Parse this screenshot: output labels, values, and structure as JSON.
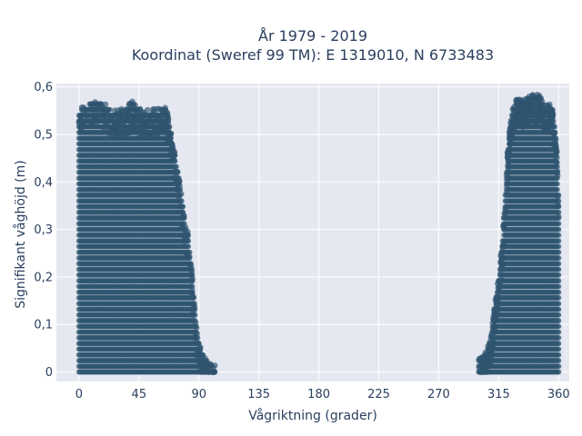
{
  "chart_data": {
    "type": "scatter",
    "title_line1": "År 1979 - 2019",
    "title_line2": "Koordinat (Sweref 99 TM): E 1319010, N 6733483",
    "xlabel": "Vågriktning (grader)",
    "ylabel": "Signifikant våghöjd (m)",
    "xlim": [
      -17,
      368
    ],
    "ylim": [
      -0.02,
      0.607
    ],
    "x_ticks": [
      0,
      45,
      90,
      135,
      180,
      225,
      270,
      315,
      360
    ],
    "x_tick_labels": [
      "0",
      "45",
      "90",
      "135",
      "180",
      "225",
      "270",
      "315",
      "360"
    ],
    "y_ticks": [
      0,
      0.1,
      0.2,
      0.3,
      0.4,
      0.5,
      0.6
    ],
    "y_tick_labels": [
      "0",
      "0,1",
      "0,2",
      "0,3",
      "0,4",
      "0,5",
      "0,6"
    ],
    "grid": true,
    "marker_color": "#2f5570",
    "plot_background": "#e5e8f0",
    "series": [
      {
        "envelope_x": [
          0,
          5,
          10,
          15,
          20,
          25,
          30,
          35,
          40,
          45,
          50,
          55,
          60,
          65,
          70,
          75,
          78,
          80,
          82,
          85,
          88,
          90,
          92,
          95,
          98,
          100,
          102
        ],
        "envelope_y": [
          0.55,
          0.56,
          0.57,
          0.57,
          0.56,
          0.55,
          0.55,
          0.55,
          0.57,
          0.55,
          0.55,
          0.55,
          0.55,
          0.56,
          0.49,
          0.41,
          0.35,
          0.31,
          0.29,
          0.2,
          0.1,
          0.06,
          0.04,
          0.03,
          0.02,
          0.01,
          0.01
        ]
      },
      {
        "envelope_x": [
          300,
          303,
          305,
          308,
          310,
          312,
          315,
          318,
          320,
          322,
          325,
          328,
          330,
          335,
          340,
          345,
          350,
          355,
          358,
          360
        ],
        "envelope_y": [
          0.03,
          0.03,
          0.04,
          0.06,
          0.09,
          0.14,
          0.2,
          0.28,
          0.38,
          0.48,
          0.55,
          0.57,
          0.57,
          0.57,
          0.58,
          0.58,
          0.56,
          0.56,
          0.5,
          0.38
        ]
      }
    ]
  }
}
